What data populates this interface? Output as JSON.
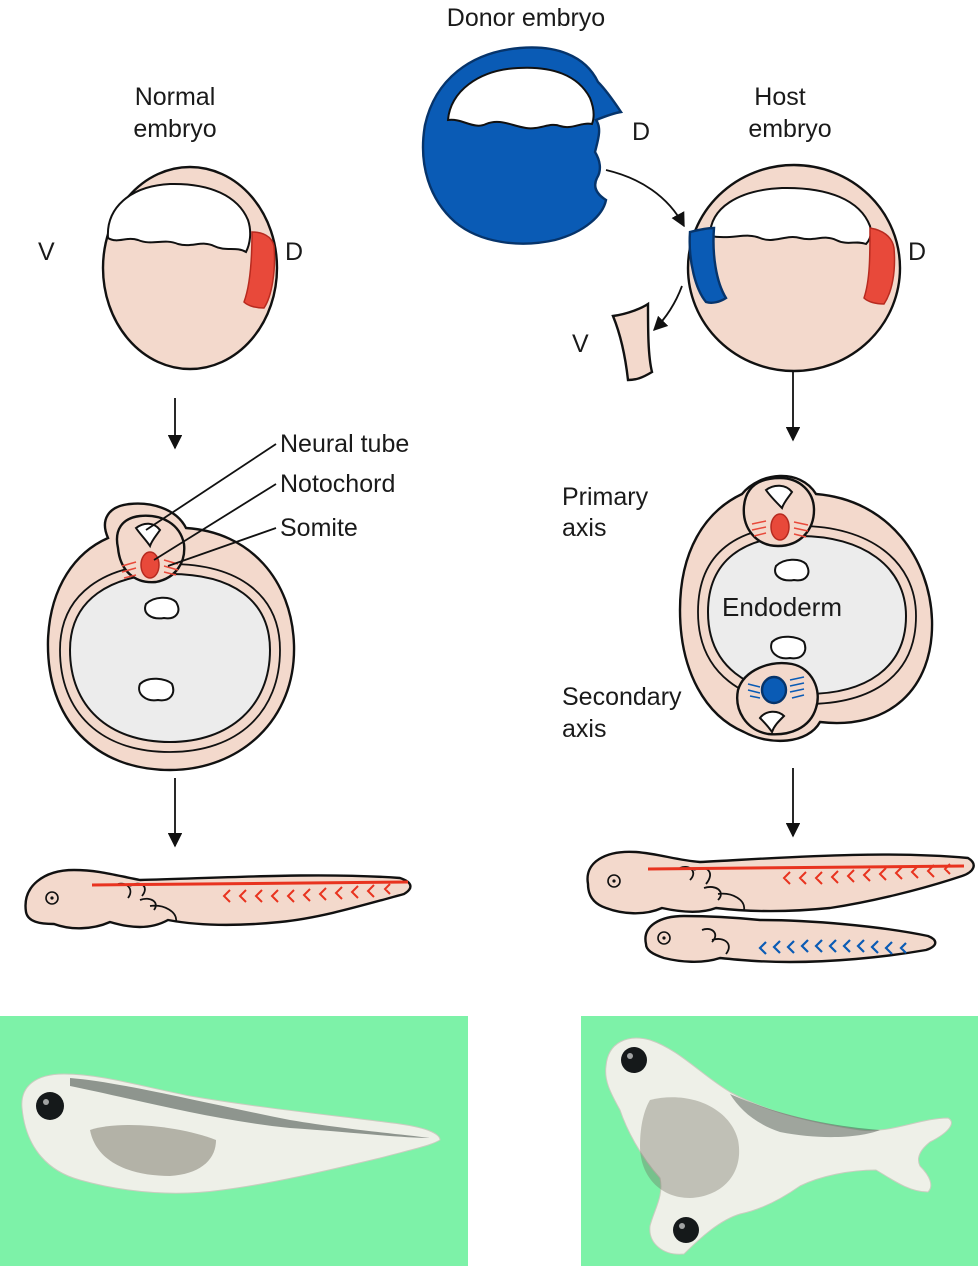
{
  "labels": {
    "donor_embryo": "Donor embryo",
    "normal_embryo_line1": "Normal",
    "normal_embryo_line2": "embryo",
    "host_embryo_line1": "Host",
    "host_embryo_line2": "embryo",
    "dorsal_donor": "D",
    "dorsal_normal": "D",
    "dorsal_host": "D",
    "ventral_normal": "V",
    "ventral_fragment": "V",
    "neural_tube": "Neural tube",
    "notochord": "Notochord",
    "somite": "Somite",
    "primary_axis_line1": "Primary",
    "primary_axis_line2": "axis",
    "secondary_axis_line1": "Secondary",
    "secondary_axis_line2": "axis",
    "endoderm": "Endoderm"
  },
  "colors": {
    "tissue": "#f3d9cc",
    "organizer_red": "#e8493a",
    "donor_blue": "#0a5bb5",
    "endoderm": "#ececec",
    "photo_background": "#7df2a8"
  },
  "photos": [
    {
      "name": "normal-tadpole-photo"
    },
    {
      "name": "twinned-tadpole-photo"
    }
  ]
}
